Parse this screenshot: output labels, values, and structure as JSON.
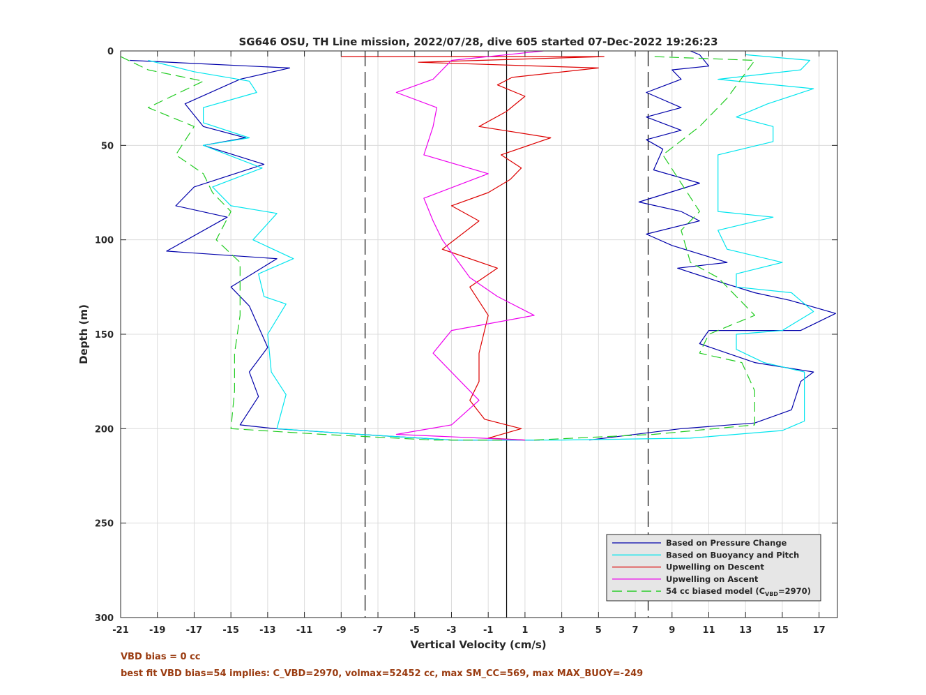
{
  "chart_data": {
    "type": "line",
    "title": "SG646 OSU, TH Line mission, 2022/07/28, dive 605 started 07-Dec-2022 19:26:23",
    "xlabel": "Vertical Velocity (cm/s)",
    "ylabel": "Depth (m)",
    "xlim": [
      -21,
      18
    ],
    "ylim": [
      0,
      300
    ],
    "y_reversed": true,
    "grid": true,
    "legend_position": "bottom-right",
    "x_ticks": [
      -21,
      -19,
      -17,
      -15,
      -13,
      -11,
      -9,
      -7,
      -5,
      -3,
      -1,
      1,
      3,
      5,
      7,
      9,
      11,
      13,
      15,
      17
    ],
    "y_ticks": [
      0,
      50,
      100,
      150,
      200,
      250,
      300
    ],
    "reference_lines": {
      "solid_vertical_x": 0,
      "dashed_vertical_x": [
        -7.7,
        7.7
      ]
    },
    "series": [
      {
        "name": "Based on Pressure Change",
        "color": "#0000aa",
        "style": "solid",
        "descent": [
          [
            -20.5,
            5
          ],
          [
            -11.8,
            9
          ],
          [
            -14.5,
            15
          ],
          [
            -17.5,
            28
          ],
          [
            -16.5,
            40
          ],
          [
            -14.2,
            46
          ],
          [
            -16.5,
            50
          ],
          [
            -13.2,
            60
          ],
          [
            -17,
            72
          ],
          [
            -18,
            82
          ],
          [
            -15.2,
            88
          ],
          [
            -18.5,
            106
          ],
          [
            -12.5,
            110
          ],
          [
            -15,
            125
          ],
          [
            -14,
            135
          ],
          [
            -13,
            157
          ],
          [
            -14,
            170
          ],
          [
            -13.5,
            183
          ],
          [
            -14.5,
            198
          ],
          [
            -12.6,
            200
          ],
          [
            -8,
            203
          ],
          [
            -3,
            206
          ],
          [
            1.8,
            206
          ]
        ],
        "ascent": [
          [
            4.5,
            206
          ],
          [
            9.5,
            200
          ],
          [
            13.5,
            197
          ],
          [
            15.5,
            190
          ],
          [
            16,
            175
          ],
          [
            16.7,
            170
          ],
          [
            13.5,
            165
          ],
          [
            10.5,
            155
          ],
          [
            11,
            148
          ],
          [
            16,
            148
          ],
          [
            17.9,
            139
          ],
          [
            15.4,
            132
          ],
          [
            13.5,
            128
          ],
          [
            11.5,
            122
          ],
          [
            9.3,
            115
          ],
          [
            12,
            112
          ],
          [
            9,
            103
          ],
          [
            7.6,
            97
          ],
          [
            10.5,
            90
          ],
          [
            9.5,
            85
          ],
          [
            7.2,
            80
          ],
          [
            10.5,
            70
          ],
          [
            8,
            63
          ],
          [
            8.5,
            52
          ],
          [
            7.6,
            47
          ],
          [
            9.5,
            42
          ],
          [
            7.6,
            35
          ],
          [
            9.5,
            30
          ],
          [
            7.6,
            22
          ],
          [
            9.5,
            15
          ],
          [
            9,
            10
          ],
          [
            11,
            8
          ],
          [
            10.5,
            2
          ],
          [
            10,
            0
          ]
        ]
      },
      {
        "name": "Based on Buoyancy and Pitch",
        "color": "#00e5ee",
        "style": "solid",
        "descent": [
          [
            -19.5,
            5
          ],
          [
            -17,
            11
          ],
          [
            -14,
            16
          ],
          [
            -13.6,
            22
          ],
          [
            -16.5,
            30
          ],
          [
            -16.5,
            38
          ],
          [
            -14,
            46
          ],
          [
            -16.5,
            50
          ],
          [
            -13.3,
            62
          ],
          [
            -16,
            72
          ],
          [
            -15,
            82
          ],
          [
            -12.5,
            86
          ],
          [
            -13.8,
            100
          ],
          [
            -11.6,
            110
          ],
          [
            -13.5,
            118
          ],
          [
            -13.2,
            130
          ],
          [
            -12,
            134
          ],
          [
            -13,
            150
          ],
          [
            -12.8,
            170
          ],
          [
            -12,
            182
          ],
          [
            -12.5,
            200
          ],
          [
            -8,
            203
          ],
          [
            -3,
            206
          ]
        ],
        "ascent": [
          [
            -3,
            206
          ],
          [
            3,
            206
          ],
          [
            10,
            205
          ],
          [
            15,
            201
          ],
          [
            16.2,
            196
          ],
          [
            16.2,
            170
          ],
          [
            14,
            165
          ],
          [
            12.5,
            158
          ],
          [
            12.5,
            150
          ],
          [
            15,
            148
          ],
          [
            16.7,
            138
          ],
          [
            15.5,
            128
          ],
          [
            12.5,
            125
          ],
          [
            12.5,
            118
          ],
          [
            15,
            112
          ],
          [
            12,
            105
          ],
          [
            11.5,
            95
          ],
          [
            14.5,
            88
          ],
          [
            11.5,
            85
          ],
          [
            11.5,
            75
          ],
          [
            11.5,
            55
          ],
          [
            14.5,
            48
          ],
          [
            14.5,
            40
          ],
          [
            12.5,
            35
          ],
          [
            14.2,
            28
          ],
          [
            16.7,
            20
          ],
          [
            11.5,
            15
          ],
          [
            16,
            10
          ],
          [
            16.5,
            5
          ],
          [
            13,
            2
          ]
        ]
      },
      {
        "name": "Upwelling on Descent",
        "color": "#dd0000",
        "style": "solid",
        "points": [
          [
            -9,
            3
          ],
          [
            5.3,
            3
          ],
          [
            -4.8,
            6
          ],
          [
            5,
            9
          ],
          [
            0.3,
            14
          ],
          [
            -0.5,
            18
          ],
          [
            1,
            24
          ],
          [
            0,
            32
          ],
          [
            -1.5,
            40
          ],
          [
            2.4,
            46
          ],
          [
            -0.3,
            55
          ],
          [
            0.8,
            62
          ],
          [
            0.2,
            68
          ],
          [
            -1,
            75
          ],
          [
            -3,
            82
          ],
          [
            -1.5,
            90
          ],
          [
            -3.5,
            105
          ],
          [
            -0.5,
            115
          ],
          [
            -2,
            125
          ],
          [
            -1,
            140
          ],
          [
            -1.5,
            160
          ],
          [
            -1.5,
            175
          ],
          [
            -2,
            185
          ],
          [
            -1.2,
            195
          ],
          [
            0.8,
            200
          ],
          [
            -1,
            205
          ],
          [
            1,
            206
          ]
        ]
      },
      {
        "name": "Upwelling on Ascent",
        "color": "#ee00ee",
        "style": "solid",
        "points": [
          [
            1,
            206
          ],
          [
            -6,
            203
          ],
          [
            -3,
            198
          ],
          [
            -1.5,
            185
          ],
          [
            -2.5,
            175
          ],
          [
            -4,
            160
          ],
          [
            -3,
            148
          ],
          [
            1.5,
            140
          ],
          [
            -0.5,
            130
          ],
          [
            -2,
            120
          ],
          [
            -3.5,
            100
          ],
          [
            -4,
            90
          ],
          [
            -4.5,
            78
          ],
          [
            -1,
            65
          ],
          [
            -4.5,
            55
          ],
          [
            -4,
            40
          ],
          [
            -3.8,
            30
          ],
          [
            -6,
            22
          ],
          [
            -4,
            15
          ],
          [
            -3,
            5
          ],
          [
            2,
            0
          ]
        ]
      },
      {
        "name": "54 cc biased model (C_VBD=2970)",
        "legend_label_main": "54 cc biased model (C",
        "legend_label_sub": "VBD",
        "legend_label_tail": "=2970)",
        "color": "#22cc22",
        "style": "dashed",
        "descent": [
          [
            -21,
            3
          ],
          [
            -19.5,
            10
          ],
          [
            -16.5,
            16
          ],
          [
            -19.5,
            30
          ],
          [
            -17,
            40
          ],
          [
            -18,
            55
          ],
          [
            -16.5,
            65
          ],
          [
            -16,
            75
          ],
          [
            -15,
            85
          ],
          [
            -15.8,
            100
          ],
          [
            -14.5,
            112
          ],
          [
            -14.5,
            140
          ],
          [
            -14.8,
            160
          ],
          [
            -14.8,
            180
          ],
          [
            -15,
            200
          ],
          [
            -10,
            203
          ],
          [
            -4,
            206
          ],
          [
            0,
            206
          ]
        ],
        "ascent": [
          [
            1.5,
            206
          ],
          [
            8,
            203
          ],
          [
            13.5,
            198
          ],
          [
            13.5,
            180
          ],
          [
            12.8,
            165
          ],
          [
            10.5,
            160
          ],
          [
            11,
            150
          ],
          [
            13.5,
            140
          ],
          [
            12.5,
            130
          ],
          [
            11.5,
            120
          ],
          [
            10,
            112
          ],
          [
            9.5,
            95
          ],
          [
            10.5,
            85
          ],
          [
            9.5,
            70
          ],
          [
            8.5,
            55
          ],
          [
            10.5,
            40
          ],
          [
            12,
            25
          ],
          [
            13.5,
            5
          ],
          [
            8,
            3
          ]
        ]
      }
    ]
  },
  "footnotes": {
    "vbd_bias": "VBD bias = 0 cc",
    "best_fit": "best fit VBD bias=54 implies: C_VBD=2970, volmax=52452 cc, max SM_CC=569, max MAX_BUOY=-249"
  }
}
